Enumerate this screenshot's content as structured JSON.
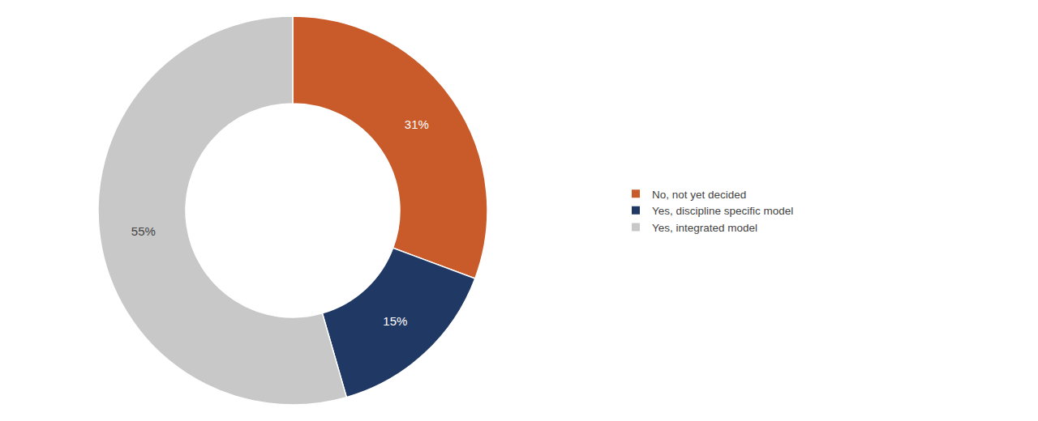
{
  "chart_data": {
    "type": "donut",
    "categories": [
      "No, not yet decided",
      "Yes, discipline specific model",
      "Yes, integrated model"
    ],
    "values": [
      31,
      15,
      55
    ],
    "value_labels": [
      "31%",
      "15%",
      "55%"
    ],
    "colors": [
      "#c95b2a",
      "#1f3864",
      "#c8c8c8"
    ],
    "data_labels": true,
    "legend": "right"
  }
}
